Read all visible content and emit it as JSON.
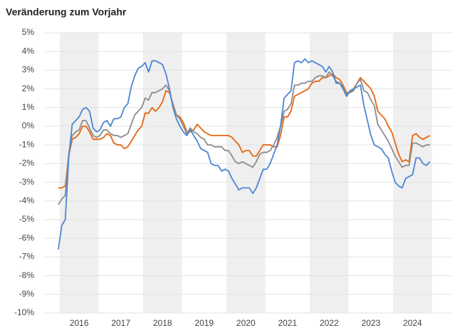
{
  "chart_data": {
    "type": "line",
    "title": "Veränderung zum Vorjahr",
    "x": [
      2016,
      2016.083,
      2016.167,
      2016.25,
      2016.333,
      2016.417,
      2016.5,
      2016.583,
      2016.667,
      2016.75,
      2016.833,
      2016.917,
      2017,
      2017.083,
      2017.167,
      2017.25,
      2017.333,
      2017.417,
      2017.5,
      2017.583,
      2017.667,
      2017.75,
      2017.833,
      2017.917,
      2018,
      2018.083,
      2018.167,
      2018.25,
      2018.333,
      2018.417,
      2018.5,
      2018.583,
      2018.667,
      2018.75,
      2018.833,
      2018.917,
      2019,
      2019.083,
      2019.167,
      2019.25,
      2019.333,
      2019.417,
      2019.5,
      2019.583,
      2019.667,
      2019.75,
      2019.833,
      2019.917,
      2020,
      2020.083,
      2020.167,
      2020.25,
      2020.333,
      2020.417,
      2020.5,
      2020.583,
      2020.667,
      2020.75,
      2020.833,
      2020.917,
      2021,
      2021.083,
      2021.167,
      2021.25,
      2021.333,
      2021.417,
      2021.5,
      2021.583,
      2021.667,
      2021.75,
      2021.833,
      2021.917,
      2022,
      2022.083,
      2022.167,
      2022.25,
      2022.333,
      2022.417,
      2022.5,
      2022.583,
      2022.667,
      2022.75,
      2022.833,
      2022.917,
      2023,
      2023.083,
      2023.167,
      2023.25,
      2023.333,
      2023.417,
      2023.5,
      2023.583,
      2023.667,
      2023.75,
      2023.833,
      2023.917,
      2024,
      2024.083,
      2024.167,
      2024.25,
      2024.333,
      2024.417,
      2024.5,
      2024.583,
      2024.667,
      2024.75,
      2024.833,
      2024.917
    ],
    "series": [
      {
        "color": "#e8650e",
        "values": [
          -3.3,
          -3.3,
          -3.2,
          -1.6,
          -0.7,
          -0.6,
          -0.4,
          0.0,
          0.0,
          -0.3,
          -0.7,
          -0.7,
          -0.7,
          -0.6,
          -0.4,
          -0.5,
          -0.9,
          -1.0,
          -1.0,
          -1.2,
          -1.1,
          -0.8,
          -0.5,
          -0.2,
          0.0,
          0.7,
          0.7,
          1.0,
          0.8,
          1.0,
          1.3,
          1.9,
          1.8,
          1.2,
          0.6,
          0.5,
          0.2,
          -0.3,
          -0.3,
          -0.2,
          0.1,
          -0.1,
          -0.3,
          -0.4,
          -0.5,
          -0.5,
          -0.5,
          -0.5,
          -0.5,
          -0.5,
          -0.6,
          -0.8,
          -1.0,
          -1.4,
          -1.3,
          -1.3,
          -1.6,
          -1.6,
          -1.3,
          -1.0,
          -1.0,
          -1.0,
          -1.1,
          -1.1,
          -0.5,
          0.5,
          0.5,
          0.8,
          1.6,
          1.7,
          1.8,
          1.9,
          2.0,
          2.3,
          2.4,
          2.4,
          2.6,
          2.6,
          2.7,
          2.8,
          2.6,
          2.5,
          2.2,
          1.8,
          1.8,
          2.0,
          2.3,
          2.6,
          2.4,
          2.2,
          2.0,
          1.6,
          0.8,
          0.6,
          0.4,
          0.0,
          -0.3,
          -0.9,
          -1.5,
          -1.9,
          -1.8,
          -1.9,
          -0.5,
          -0.4,
          -0.6,
          -0.7,
          -0.6,
          -0.5
        ]
      },
      {
        "color": "#8c8c8c",
        "values": [
          -4.2,
          -3.9,
          -3.7,
          -1.5,
          -0.5,
          -0.3,
          -0.2,
          0.3,
          0.3,
          -0.1,
          -0.5,
          -0.6,
          -0.5,
          -0.2,
          -0.2,
          -0.4,
          -0.5,
          -0.5,
          -0.6,
          -0.5,
          -0.4,
          0.1,
          0.6,
          0.8,
          1.0,
          1.5,
          1.4,
          1.8,
          1.8,
          1.9,
          2.0,
          2.2,
          1.9,
          1.1,
          0.6,
          0.4,
          0.0,
          -0.4,
          -0.1,
          -0.3,
          -0.4,
          -0.6,
          -0.7,
          -1.0,
          -1.0,
          -1.1,
          -1.1,
          -1.1,
          -1.3,
          -1.3,
          -1.6,
          -1.9,
          -2.0,
          -1.9,
          -2.0,
          -2.1,
          -2.2,
          -1.9,
          -1.5,
          -1.4,
          -1.4,
          -1.3,
          -1.0,
          -0.6,
          0.0,
          0.8,
          0.9,
          1.2,
          2.2,
          2.2,
          2.3,
          2.3,
          2.4,
          2.4,
          2.6,
          2.7,
          2.7,
          2.6,
          2.9,
          2.7,
          2.4,
          2.3,
          2.1,
          1.7,
          1.8,
          1.9,
          2.3,
          2.5,
          1.9,
          1.8,
          1.4,
          1.1,
          0.1,
          -0.2,
          -0.5,
          -0.8,
          -1.2,
          -1.6,
          -1.9,
          -2.2,
          -2.1,
          -2.1,
          -0.9,
          -0.9,
          -1.0,
          -1.1,
          -1.0,
          -1.0
        ]
      },
      {
        "color": "#4a86d4",
        "values": [
          -6.6,
          -5.3,
          -5.0,
          -1.7,
          0.1,
          0.3,
          0.5,
          0.9,
          1.0,
          0.8,
          -0.1,
          -0.3,
          -0.2,
          0.2,
          0.3,
          0.0,
          0.4,
          0.4,
          0.5,
          1.0,
          1.2,
          2.1,
          2.7,
          3.1,
          3.2,
          3.4,
          2.9,
          3.5,
          3.5,
          3.4,
          3.3,
          2.8,
          2.0,
          1.0,
          0.4,
          0.0,
          -0.3,
          -0.5,
          -0.2,
          -0.5,
          -0.8,
          -1.2,
          -1.3,
          -1.4,
          -2.0,
          -2.1,
          -2.1,
          -2.4,
          -2.3,
          -2.4,
          -2.8,
          -3.1,
          -3.4,
          -3.3,
          -3.3,
          -3.3,
          -3.6,
          -3.3,
          -2.8,
          -2.3,
          -2.3,
          -2.0,
          -1.5,
          -1.0,
          0.0,
          1.5,
          1.7,
          1.9,
          3.4,
          3.5,
          3.4,
          3.6,
          3.4,
          3.5,
          3.4,
          3.3,
          3.2,
          2.9,
          3.2,
          2.9,
          2.3,
          2.3,
          2.0,
          1.6,
          1.9,
          2.0,
          2.1,
          2.2,
          1.1,
          0.3,
          -0.5,
          -1.0,
          -1.1,
          -1.2,
          -1.5,
          -1.7,
          -2.4,
          -3.0,
          -3.2,
          -3.3,
          -2.8,
          -2.7,
          -2.6,
          -1.7,
          -1.7,
          -2.0,
          -2.1,
          -1.9
        ]
      }
    ],
    "xlim": [
      2015.66,
      2025.45
    ],
    "xticks": [
      {
        "value": 2016.5,
        "label": "2016"
      },
      {
        "value": 2017.5,
        "label": "2017"
      },
      {
        "value": 2018.5,
        "label": "2018"
      },
      {
        "value": 2019.5,
        "label": "2019"
      },
      {
        "value": 2020.5,
        "label": "2020"
      },
      {
        "value": 2021.5,
        "label": "2021"
      },
      {
        "value": 2022.5,
        "label": "2022"
      },
      {
        "value": 2023.5,
        "label": "2023"
      },
      {
        "value": 2024.5,
        "label": "2024"
      }
    ],
    "bands": [
      [
        2016,
        2017
      ],
      [
        2018,
        2019
      ],
      [
        2020,
        2021
      ],
      [
        2022,
        2023
      ],
      [
        2024,
        2025
      ]
    ],
    "ylim": [
      -10,
      5
    ],
    "yticks": [
      {
        "value": 5,
        "label": "5%"
      },
      {
        "value": 4,
        "label": "4%"
      },
      {
        "value": 3,
        "label": "3%"
      },
      {
        "value": 2,
        "label": "2%"
      },
      {
        "value": 1,
        "label": "1%"
      },
      {
        "value": 0,
        "label": "0%"
      },
      {
        "value": -1,
        "label": "-1%"
      },
      {
        "value": -2,
        "label": "-2%"
      },
      {
        "value": -3,
        "label": "-3%"
      },
      {
        "value": -4,
        "label": "-4%"
      },
      {
        "value": -5,
        "label": "-5%"
      },
      {
        "value": -6,
        "label": "-6%"
      },
      {
        "value": -7,
        "label": "-7%"
      },
      {
        "value": -8,
        "label": "-8%"
      },
      {
        "value": -9,
        "label": "-9%"
      },
      {
        "value": -10,
        "label": "-10%"
      }
    ],
    "grid": true
  }
}
